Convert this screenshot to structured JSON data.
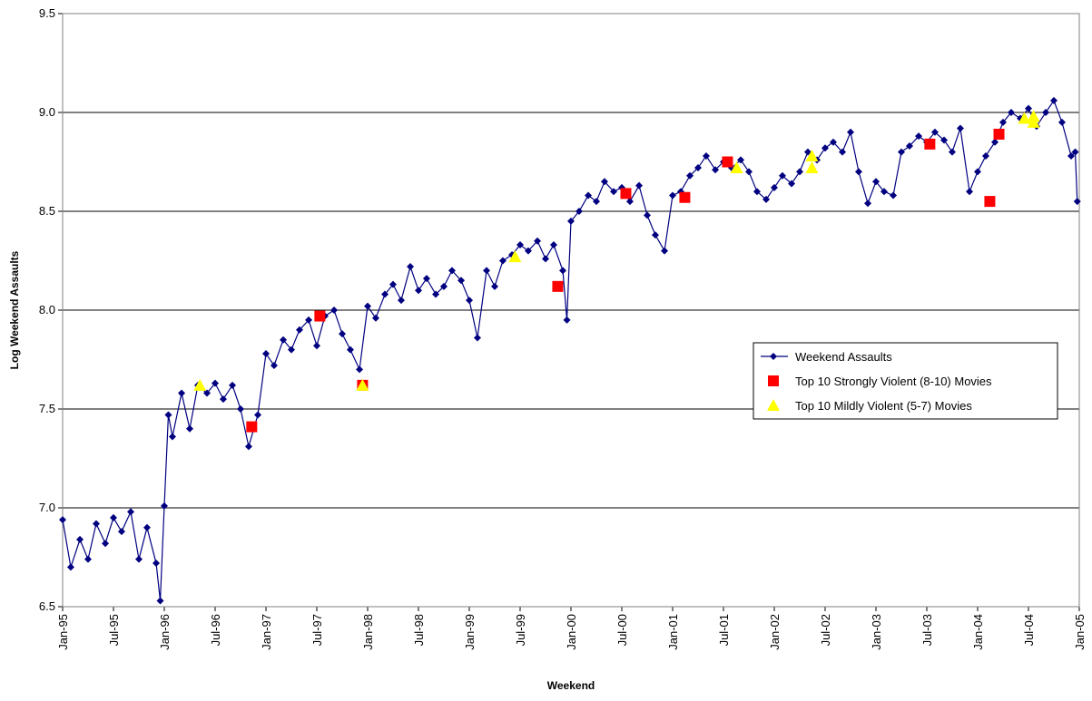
{
  "chart_data": {
    "type": "line",
    "xlabel": "Weekend",
    "ylabel": "Log Weekend Assaults",
    "xlim": [
      1995,
      2005
    ],
    "ylim": [
      6.5,
      9.5
    ],
    "xticks": [
      {
        "value": 1995,
        "label": "Jan-95"
      },
      {
        "value": 1995.5,
        "label": "Jul-95"
      },
      {
        "value": 1996,
        "label": "Jan-96"
      },
      {
        "value": 1996.5,
        "label": "Jul-96"
      },
      {
        "value": 1997,
        "label": "Jan-97"
      },
      {
        "value": 1997.5,
        "label": "Jul-97"
      },
      {
        "value": 1998,
        "label": "Jan-98"
      },
      {
        "value": 1998.5,
        "label": "Jul-98"
      },
      {
        "value": 1999,
        "label": "Jan-99"
      },
      {
        "value": 1999.5,
        "label": "Jul-99"
      },
      {
        "value": 2000,
        "label": "Jan-00"
      },
      {
        "value": 2000.5,
        "label": "Jul-00"
      },
      {
        "value": 2001,
        "label": "Jan-01"
      },
      {
        "value": 2001.5,
        "label": "Jul-01"
      },
      {
        "value": 2002,
        "label": "Jan-02"
      },
      {
        "value": 2002.5,
        "label": "Jul-02"
      },
      {
        "value": 2003,
        "label": "Jan-03"
      },
      {
        "value": 2003.5,
        "label": "Jul-03"
      },
      {
        "value": 2004,
        "label": "Jan-04"
      },
      {
        "value": 2004.5,
        "label": "Jul-04"
      },
      {
        "value": 2005,
        "label": "Jan-05"
      }
    ],
    "yticks": [
      6.5,
      {
        "value": 7,
        "label": "7.0"
      },
      7.5,
      {
        "value": 8,
        "label": "8.0"
      },
      8.5,
      {
        "value": 9,
        "label": "9.0"
      },
      9.5
    ],
    "grid": true,
    "legend": "right",
    "series": [
      {
        "name": "Weekend Assaults",
        "color": "#000080",
        "marker": "diamond",
        "line": true,
        "x": [
          1995.0,
          1995.08,
          1995.17,
          1995.25,
          1995.33,
          1995.42,
          1995.5,
          1995.58,
          1995.67,
          1995.75,
          1995.83,
          1995.92,
          1995.96,
          1996.0,
          1996.04,
          1996.08,
          1996.17,
          1996.25,
          1996.33,
          1996.42,
          1996.5,
          1996.58,
          1996.67,
          1996.75,
          1996.83,
          1996.92,
          1997.0,
          1997.08,
          1997.17,
          1997.25,
          1997.33,
          1997.42,
          1997.5,
          1997.58,
          1997.67,
          1997.75,
          1997.83,
          1997.92,
          1998.0,
          1998.08,
          1998.17,
          1998.25,
          1998.33,
          1998.42,
          1998.5,
          1998.58,
          1998.67,
          1998.75,
          1998.83,
          1998.92,
          1999.0,
          1999.08,
          1999.17,
          1999.25,
          1999.33,
          1999.42,
          1999.5,
          1999.58,
          1999.67,
          1999.75,
          1999.83,
          1999.92,
          1999.96,
          2000.0,
          2000.08,
          2000.17,
          2000.25,
          2000.33,
          2000.42,
          2000.5,
          2000.58,
          2000.67,
          2000.75,
          2000.83,
          2000.92,
          2001.0,
          2001.08,
          2001.17,
          2001.25,
          2001.33,
          2001.42,
          2001.5,
          2001.58,
          2001.67,
          2001.75,
          2001.83,
          2001.92,
          2002.0,
          2002.08,
          2002.17,
          2002.25,
          2002.33,
          2002.42,
          2002.5,
          2002.58,
          2002.67,
          2002.75,
          2002.83,
          2002.92,
          2003.0,
          2003.08,
          2003.17,
          2003.25,
          2003.33,
          2003.42,
          2003.5,
          2003.58,
          2003.67,
          2003.75,
          2003.83,
          2003.92,
          2004.0,
          2004.08,
          2004.17,
          2004.25,
          2004.33,
          2004.42,
          2004.5,
          2004.58,
          2004.67,
          2004.75,
          2004.83,
          2004.92,
          2004.96,
          2004.98
        ],
        "values": [
          6.94,
          6.7,
          6.84,
          6.74,
          6.92,
          6.82,
          6.95,
          6.88,
          6.98,
          6.74,
          6.9,
          6.72,
          6.53,
          7.01,
          7.47,
          7.36,
          7.58,
          7.4,
          7.62,
          7.58,
          7.63,
          7.55,
          7.62,
          7.5,
          7.31,
          7.47,
          7.78,
          7.72,
          7.85,
          7.8,
          7.9,
          7.95,
          7.82,
          7.97,
          8.0,
          7.88,
          7.8,
          7.7,
          8.02,
          7.96,
          8.08,
          8.13,
          8.05,
          8.22,
          8.1,
          8.16,
          8.08,
          8.12,
          8.2,
          8.15,
          8.05,
          7.86,
          8.2,
          8.12,
          8.25,
          8.28,
          8.33,
          8.3,
          8.35,
          8.26,
          8.33,
          8.2,
          7.95,
          8.45,
          8.5,
          8.58,
          8.55,
          8.65,
          8.6,
          8.62,
          8.55,
          8.63,
          8.48,
          8.38,
          8.3,
          8.58,
          8.6,
          8.68,
          8.72,
          8.78,
          8.71,
          8.75,
          8.72,
          8.76,
          8.7,
          8.6,
          8.56,
          8.62,
          8.68,
          8.64,
          8.7,
          8.8,
          8.76,
          8.82,
          8.85,
          8.8,
          8.9,
          8.7,
          8.54,
          8.65,
          8.6,
          8.58,
          8.8,
          8.83,
          8.88,
          8.85,
          8.9,
          8.86,
          8.8,
          8.92,
          8.6,
          8.7,
          8.78,
          8.85,
          8.95,
          9.0,
          8.97,
          9.02,
          8.93,
          9.0,
          9.06,
          8.95,
          8.78,
          8.8,
          8.55
        ]
      },
      {
        "name": "Top 10 Strongly Violent (8-10) Movies",
        "color": "#ff0000",
        "marker": "square",
        "line": false,
        "x": [
          1996.86,
          1997.53,
          1997.95,
          1999.87,
          2000.54,
          2001.12,
          2001.54,
          2003.53,
          2004.12,
          2004.21
        ],
        "values": [
          7.41,
          7.97,
          7.62,
          8.12,
          8.59,
          8.57,
          8.75,
          8.84,
          8.55,
          8.89
        ]
      },
      {
        "name": "Top 10 Mildly Violent (5-7) Movies",
        "color": "#ffff00",
        "marker": "triangle",
        "line": false,
        "x": [
          1996.35,
          1997.95,
          1999.45,
          2001.63,
          2002.37,
          2002.37,
          2004.46,
          2004.55,
          2004.55
        ],
        "values": [
          7.62,
          7.62,
          8.27,
          8.72,
          8.78,
          8.72,
          8.97,
          8.98,
          8.95
        ]
      }
    ]
  }
}
